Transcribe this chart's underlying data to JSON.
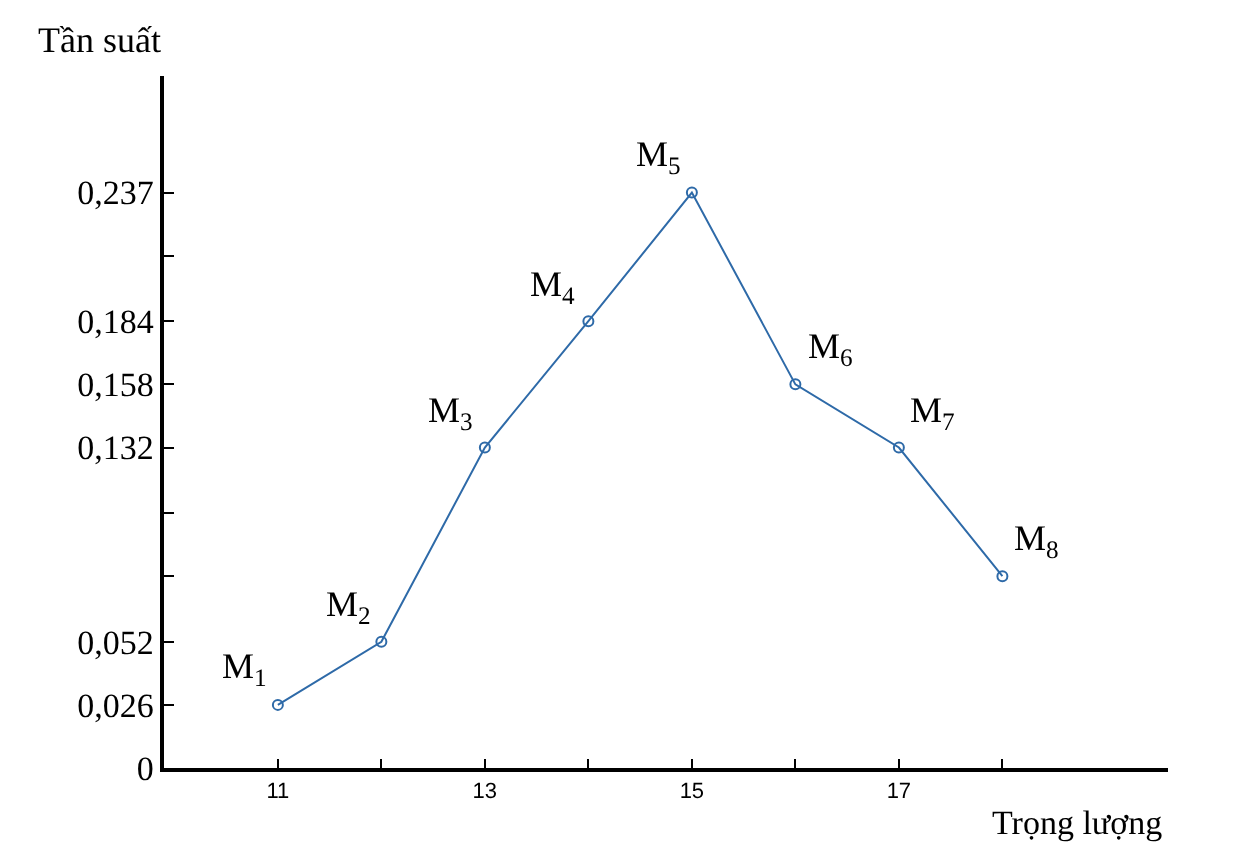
{
  "chart_data": {
    "type": "line",
    "xlabel": "Trọng lượng",
    "ylabel": "Tần suất",
    "x": [
      11,
      12,
      13,
      14,
      15,
      16,
      17,
      18
    ],
    "series": [
      {
        "color": "#2e6aa8",
        "values": [
          0.026,
          0.052,
          0.132,
          0.184,
          0.237,
          0.158,
          0.132,
          0.079
        ]
      }
    ],
    "marker": "circle",
    "xlim": [
      9.9,
      19.6
    ],
    "xticks": [
      11,
      {
        "value": 12,
        "label": null
      },
      13,
      {
        "value": 14,
        "label": null
      },
      15,
      {
        "value": 16,
        "label": null
      },
      17,
      {
        "value": 18,
        "label": null
      }
    ],
    "ylim": [
      0,
      0.285
    ],
    "yticks": [
      {
        "value": 0,
        "label": "0"
      },
      {
        "value": 0.026,
        "label": "0,026"
      },
      {
        "value": 0.052,
        "label": "0,052"
      },
      {
        "value": 0.079,
        "label": null
      },
      {
        "value": 0.105,
        "label": null
      },
      {
        "value": 0.132,
        "label": "0,132"
      },
      {
        "value": 0.158,
        "label": "0,158"
      },
      {
        "value": 0.184,
        "label": "0,184"
      },
      {
        "value": 0.211,
        "label": null
      },
      {
        "value": 0.237,
        "label": "0,237"
      }
    ],
    "annotations": [
      {
        "text": "M$_{1}$",
        "x": 11,
        "y": 0.026
      },
      {
        "text": "M$_{2}$",
        "x": 12,
        "y": 0.052
      },
      {
        "text": "M$_{3}$",
        "x": 13,
        "y": 0.132
      },
      {
        "text": "M$_{4}$",
        "x": 14,
        "y": 0.184
      },
      {
        "text": "M$_{5}$",
        "x": 15,
        "y": 0.237
      },
      {
        "text": "M$_{6}$",
        "x": 16,
        "y": 0.158
      },
      {
        "text": "M$_{7}$",
        "x": 17,
        "y": 0.132
      },
      {
        "text": "M$_{8}$",
        "x": 18,
        "y": 0.079
      }
    ]
  }
}
